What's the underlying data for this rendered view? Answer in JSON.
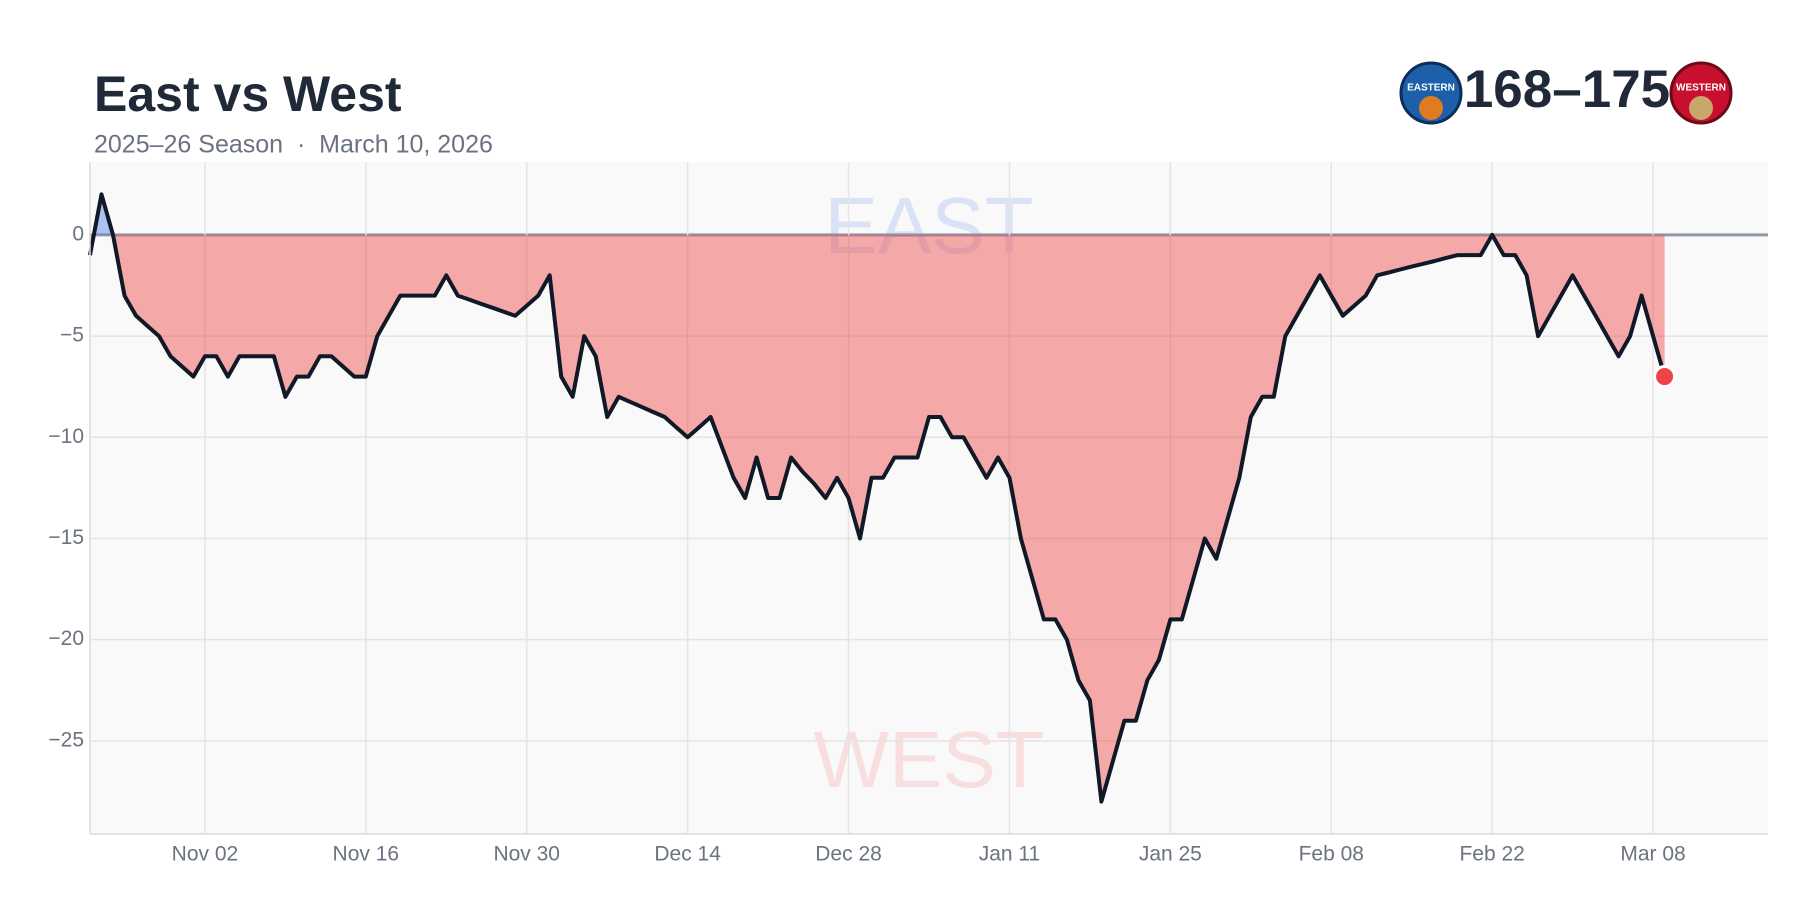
{
  "chart_data": {
    "type": "area",
    "title": "East vs West",
    "subtitle": "2025–26 Season  ·  March 10, 2026",
    "score": "168–175",
    "logos": [
      "EASTERN",
      "WESTERN"
    ],
    "annotations": [
      "EAST",
      "WEST"
    ],
    "categories": [
      null,
      null,
      null,
      null,
      null,
      null,
      null,
      null,
      null,
      null,
      "Nov 02",
      null,
      null,
      null,
      null,
      null,
      null,
      null,
      null,
      null,
      null,
      null,
      null,
      null,
      "Nov 16",
      null,
      null,
      null,
      null,
      null,
      null,
      null,
      null,
      null,
      null,
      null,
      null,
      null,
      "Nov 30",
      null,
      null,
      null,
      null,
      null,
      null,
      null,
      null,
      null,
      null,
      null,
      null,
      null,
      "Dec 14",
      null,
      null,
      null,
      null,
      null,
      null,
      null,
      null,
      null,
      null,
      null,
      null,
      null,
      "Dec 28",
      null,
      null,
      null,
      null,
      null,
      null,
      null,
      null,
      null,
      null,
      null,
      null,
      null,
      "Jan 11",
      null,
      null,
      null,
      null,
      null,
      null,
      null,
      null,
      null,
      null,
      null,
      null,
      null,
      "Jan 25",
      null,
      null,
      null,
      null,
      null,
      null,
      null,
      null,
      null,
      null,
      null,
      null,
      null,
      "Feb 08",
      null,
      null,
      null,
      null,
      null,
      null,
      null,
      null,
      null,
      null,
      null,
      null,
      null,
      "Feb 22",
      null,
      null,
      null,
      null,
      null,
      null,
      null,
      null,
      null,
      null,
      null,
      null,
      null,
      "Mar 08",
      null,
      null,
      null,
      null,
      null,
      null,
      null,
      null,
      null
    ],
    "values": [
      -1,
      2,
      0,
      -3,
      -4,
      -4.5,
      -5,
      -6,
      -6.5,
      -7,
      -6,
      -6,
      -7,
      -6,
      -6,
      -6,
      -6,
      -8,
      -7,
      -7,
      -6,
      -6,
      -6.5,
      -7,
      -7,
      -5,
      -4,
      -3,
      -3,
      -3,
      -3,
      -2,
      -3,
      -3.2,
      -3.4,
      -3.6,
      -3.8,
      -4,
      -3.5,
      -3,
      -2,
      -7,
      -8,
      -5,
      -6,
      -9,
      -8,
      -8.25,
      -8.5,
      -8.75,
      -9,
      -9.5,
      -10,
      -9.5,
      -9,
      -10.5,
      -12,
      -13,
      -11,
      -13,
      -13,
      -11,
      -11.7,
      -12.3,
      -13,
      -12,
      -13,
      -15,
      -12,
      -12,
      -11,
      -11,
      -11,
      -9,
      -9,
      -10,
      -10,
      -11,
      -12,
      -11,
      -12,
      -15,
      -17,
      -19,
      -19,
      -20,
      -22,
      -23,
      -28,
      -26,
      -24,
      -24,
      -22,
      -21,
      -19,
      -19,
      -17,
      -15,
      -16,
      -14,
      -12,
      -9,
      -8,
      -8,
      -5,
      -4,
      -3,
      -2,
      -3,
      -4,
      -3.5,
      -3,
      -2,
      -1.86,
      -1.71,
      -1.57,
      -1.43,
      -1.29,
      -1.14,
      -1,
      -1,
      -1,
      0,
      -1,
      -1,
      -2,
      -5,
      -4,
      -3,
      -2,
      -3,
      -4,
      -5,
      -6,
      -5,
      -3,
      -5,
      -7,
      null,
      null,
      null,
      null,
      null,
      null,
      null,
      null
    ],
    "line_color": "#111827",
    "above_color": "#4f7de8",
    "below_color": "#ef4444",
    "ylim": [
      -29.6,
      3.6
    ],
    "yticks": [
      {
        "value": 0,
        "label": "0"
      },
      {
        "value": -5,
        "label": "−5"
      },
      {
        "value": -10,
        "label": "−10"
      },
      {
        "value": -15,
        "label": "−15"
      },
      {
        "value": -20,
        "label": "−20"
      },
      {
        "value": -25,
        "label": "−25"
      }
    ],
    "grid": true
  }
}
